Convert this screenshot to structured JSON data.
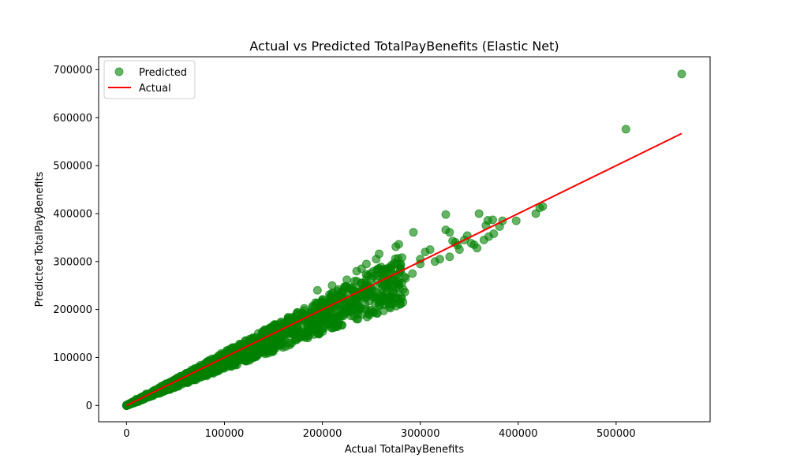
{
  "chart_data": {
    "type": "scatter",
    "title": "Actual vs Predicted TotalPayBenefits (Elastic Net)",
    "xlabel": "Actual TotalPayBenefits",
    "ylabel": "Predicted TotalPayBenefits",
    "xlim": [
      -28500,
      596000
    ],
    "ylim": [
      -34000,
      727000
    ],
    "x_ticks": [
      0,
      100000,
      200000,
      300000,
      400000,
      500000
    ],
    "x_tick_labels": [
      "0",
      "100000",
      "200000",
      "300000",
      "400000",
      "500000"
    ],
    "y_ticks": [
      0,
      100000,
      200000,
      300000,
      400000,
      500000,
      600000,
      700000
    ],
    "y_tick_labels": [
      "0",
      "100000",
      "200000",
      "300000",
      "400000",
      "500000",
      "600000",
      "700000"
    ],
    "grid": false,
    "legend_position": "top-left",
    "series": [
      {
        "name": "Predicted",
        "kind": "scatter",
        "color": "#008000",
        "opacity": 0.6,
        "points": [
          [
            0,
            0
          ],
          [
            2000,
            3000
          ],
          [
            5000,
            6000
          ],
          [
            8000,
            5000
          ],
          [
            10000,
            13000
          ],
          [
            15000,
            12000
          ],
          [
            20000,
            24000
          ],
          [
            25000,
            22000
          ],
          [
            30000,
            31000
          ],
          [
            35000,
            33000
          ],
          [
            40000,
            44000
          ],
          [
            45000,
            41000
          ],
          [
            50000,
            54000
          ],
          [
            55000,
            50000
          ],
          [
            60000,
            65000
          ],
          [
            65000,
            60000
          ],
          [
            70000,
            76000
          ],
          [
            75000,
            70000
          ],
          [
            80000,
            87000
          ],
          [
            85000,
            79000
          ],
          [
            90000,
            96000
          ],
          [
            95000,
            89000
          ],
          [
            100000,
            108000
          ],
          [
            105000,
            97000
          ],
          [
            110000,
            118000
          ],
          [
            115000,
            106000
          ],
          [
            120000,
            128000
          ],
          [
            125000,
            116000
          ],
          [
            130000,
            139000
          ],
          [
            135000,
            125000
          ],
          [
            140000,
            150000
          ],
          [
            145000,
            134000
          ],
          [
            150000,
            160000
          ],
          [
            155000,
            144000
          ],
          [
            160000,
            171000
          ],
          [
            165000,
            153000
          ],
          [
            170000,
            182000
          ],
          [
            175000,
            162000
          ],
          [
            180000,
            193000
          ],
          [
            185000,
            171000
          ],
          [
            190000,
            204000
          ],
          [
            195000,
            180000
          ],
          [
            200000,
            214000
          ],
          [
            205000,
            190000
          ],
          [
            210000,
            224000
          ],
          [
            215000,
            199000
          ],
          [
            220000,
            235000
          ],
          [
            225000,
            208000
          ],
          [
            230000,
            246000
          ],
          [
            235000,
            217000
          ],
          [
            240000,
            255000
          ],
          [
            245000,
            226000
          ],
          [
            250000,
            265000
          ],
          [
            255000,
            236000
          ],
          [
            260000,
            275000
          ],
          [
            265000,
            245000
          ],
          [
            270000,
            285000
          ],
          [
            275000,
            254000
          ],
          [
            280000,
            295000
          ],
          [
            285000,
            265000
          ],
          [
            195000,
            240000
          ],
          [
            210000,
            250000
          ],
          [
            225000,
            262000
          ],
          [
            235000,
            280000
          ],
          [
            240000,
            285000
          ],
          [
            245000,
            295000
          ],
          [
            255000,
            305000
          ],
          [
            258000,
            316000
          ],
          [
            275000,
            331000
          ],
          [
            278000,
            336000
          ],
          [
            293000,
            361000
          ],
          [
            300000,
            305000
          ],
          [
            305000,
            320000
          ],
          [
            310000,
            325000
          ],
          [
            320000,
            305000
          ],
          [
            330000,
            310000
          ],
          [
            333000,
            343000
          ],
          [
            336000,
            340000
          ],
          [
            326000,
            366000
          ],
          [
            330000,
            361000
          ],
          [
            338000,
            334000
          ],
          [
            340000,
            325000
          ],
          [
            345000,
            345000
          ],
          [
            348000,
            354000
          ],
          [
            352000,
            338000
          ],
          [
            355000,
            335000
          ],
          [
            358000,
            328000
          ],
          [
            326000,
            398000
          ],
          [
            360000,
            400000
          ],
          [
            365000,
            345000
          ],
          [
            367000,
            375000
          ],
          [
            369000,
            386000
          ],
          [
            370000,
            352000
          ],
          [
            374000,
            387000
          ],
          [
            375000,
            358000
          ],
          [
            381000,
            373000
          ],
          [
            384000,
            385000
          ],
          [
            398000,
            385000
          ],
          [
            418000,
            400000
          ],
          [
            422000,
            412000
          ],
          [
            425000,
            415000
          ],
          [
            510000,
            576000
          ],
          [
            567000,
            691000
          ],
          [
            180000,
            190000
          ],
          [
            200000,
            190000
          ],
          [
            206000,
            185000
          ],
          [
            215000,
            185000
          ],
          [
            220000,
            200000
          ],
          [
            230000,
            215000
          ],
          [
            248000,
            232000
          ],
          [
            262000,
            250000
          ],
          [
            268000,
            255000
          ],
          [
            280000,
            280000
          ],
          [
            292000,
            275000
          ],
          [
            300000,
            295000
          ],
          [
            315000,
            300000
          ],
          [
            12000,
            8000
          ],
          [
            18000,
            16000
          ],
          [
            22000,
            19000
          ],
          [
            28000,
            26000
          ]
        ]
      },
      {
        "name": "Actual",
        "kind": "line",
        "color": "#ff0000",
        "points": [
          [
            0,
            0
          ],
          [
            567000,
            567000
          ]
        ]
      }
    ]
  }
}
